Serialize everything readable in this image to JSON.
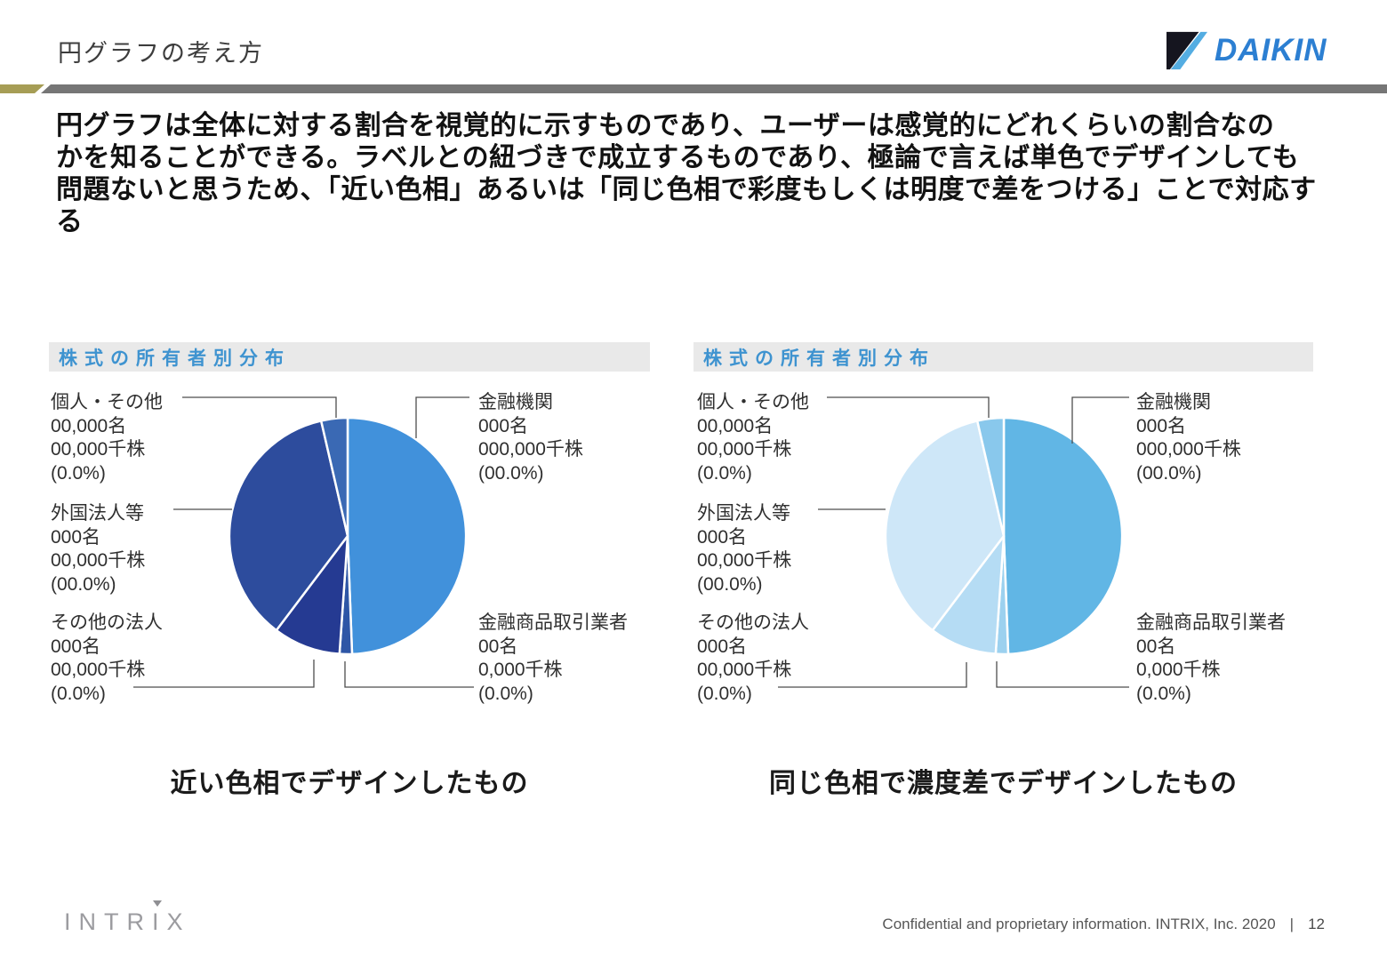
{
  "header": {
    "title": "円グラフの考え方",
    "logo_text": "DAIKIN"
  },
  "colors": {
    "accent_gold": "#a69d55",
    "accent_gray": "#767676",
    "chart_title_blue": "#3e93d0",
    "daikin_blue": "#2c7fd2"
  },
  "intro": {
    "line1": "円グラフは全体に対する割合を視覚的に示すものであり、ユーザーは感覚的にどれくらいの割合なの",
    "line2": "かを知ることができる。ラベルとの紐づきで成立するものであり、極論で言えば単色でデザインしても",
    "line3": "問題ないと思うため、「近い色相」あるいは「同じ色相で彩度もしくは明度で差をつける」ことで対応する"
  },
  "chart_data": [
    {
      "type": "pie",
      "title": "株式の所有者別分布",
      "caption": "近い色相でデザインしたもの",
      "legend_position": "callout-labels",
      "slices": [
        {
          "name": "金融機関",
          "lines": [
            "金融機関",
            "000名",
            "000,000千株",
            "(00.0%)"
          ],
          "percent": 49.4,
          "color": "#4191db"
        },
        {
          "name": "金融商品取引業者",
          "lines": [
            "金融商品取引業者",
            "00名",
            "0,000千株",
            "(0.0%)"
          ],
          "percent": 1.7,
          "color": "#2e56a6"
        },
        {
          "name": "その他の法人",
          "lines": [
            "その他の法人",
            "000名",
            "00,000千株",
            "(0.0%)"
          ],
          "percent": 9.2,
          "color": "#253a92"
        },
        {
          "name": "外国法人等",
          "lines": [
            "外国法人等",
            "000名",
            "00,000千株",
            "(00.0%)"
          ],
          "percent": 36.1,
          "color": "#2d4c9d"
        },
        {
          "name": "個人・その他",
          "lines": [
            "個人・その他",
            "00,000名",
            "00,000千株",
            "(0.0%)"
          ],
          "percent": 3.6,
          "color": "#3a69b4"
        }
      ]
    },
    {
      "type": "pie",
      "title": "株式の所有者別分布",
      "caption": "同じ色相で濃度差でデザインしたもの",
      "legend_position": "callout-labels",
      "slices": [
        {
          "name": "金融機関",
          "lines": [
            "金融機関",
            "000名",
            "000,000千株",
            "(00.0%)"
          ],
          "percent": 49.4,
          "color": "#61b6e5"
        },
        {
          "name": "金融商品取引業者",
          "lines": [
            "金融商品取引業者",
            "00名",
            "0,000千株",
            "(0.0%)"
          ],
          "percent": 1.7,
          "color": "#9cd1ef"
        },
        {
          "name": "その他の法人",
          "lines": [
            "その他の法人",
            "000名",
            "00,000千株",
            "(0.0%)"
          ],
          "percent": 9.2,
          "color": "#b5dcf4"
        },
        {
          "name": "外国法人等",
          "lines": [
            "外国法人等",
            "000名",
            "00,000千株",
            "(00.0%)"
          ],
          "percent": 36.1,
          "color": "#cee7f8"
        },
        {
          "name": "個人・その他",
          "lines": [
            "個人・その他",
            "00,000名",
            "00,000千株",
            "(0.0%)"
          ],
          "percent": 3.6,
          "color": "#89c8ec"
        }
      ]
    }
  ],
  "footer": {
    "logo_before": "INTR",
    "logo_accent": "I",
    "logo_after": "X",
    "confidential": "Confidential and proprietary information. INTRIX, Inc. 2020",
    "separator": "|",
    "page": "12"
  }
}
